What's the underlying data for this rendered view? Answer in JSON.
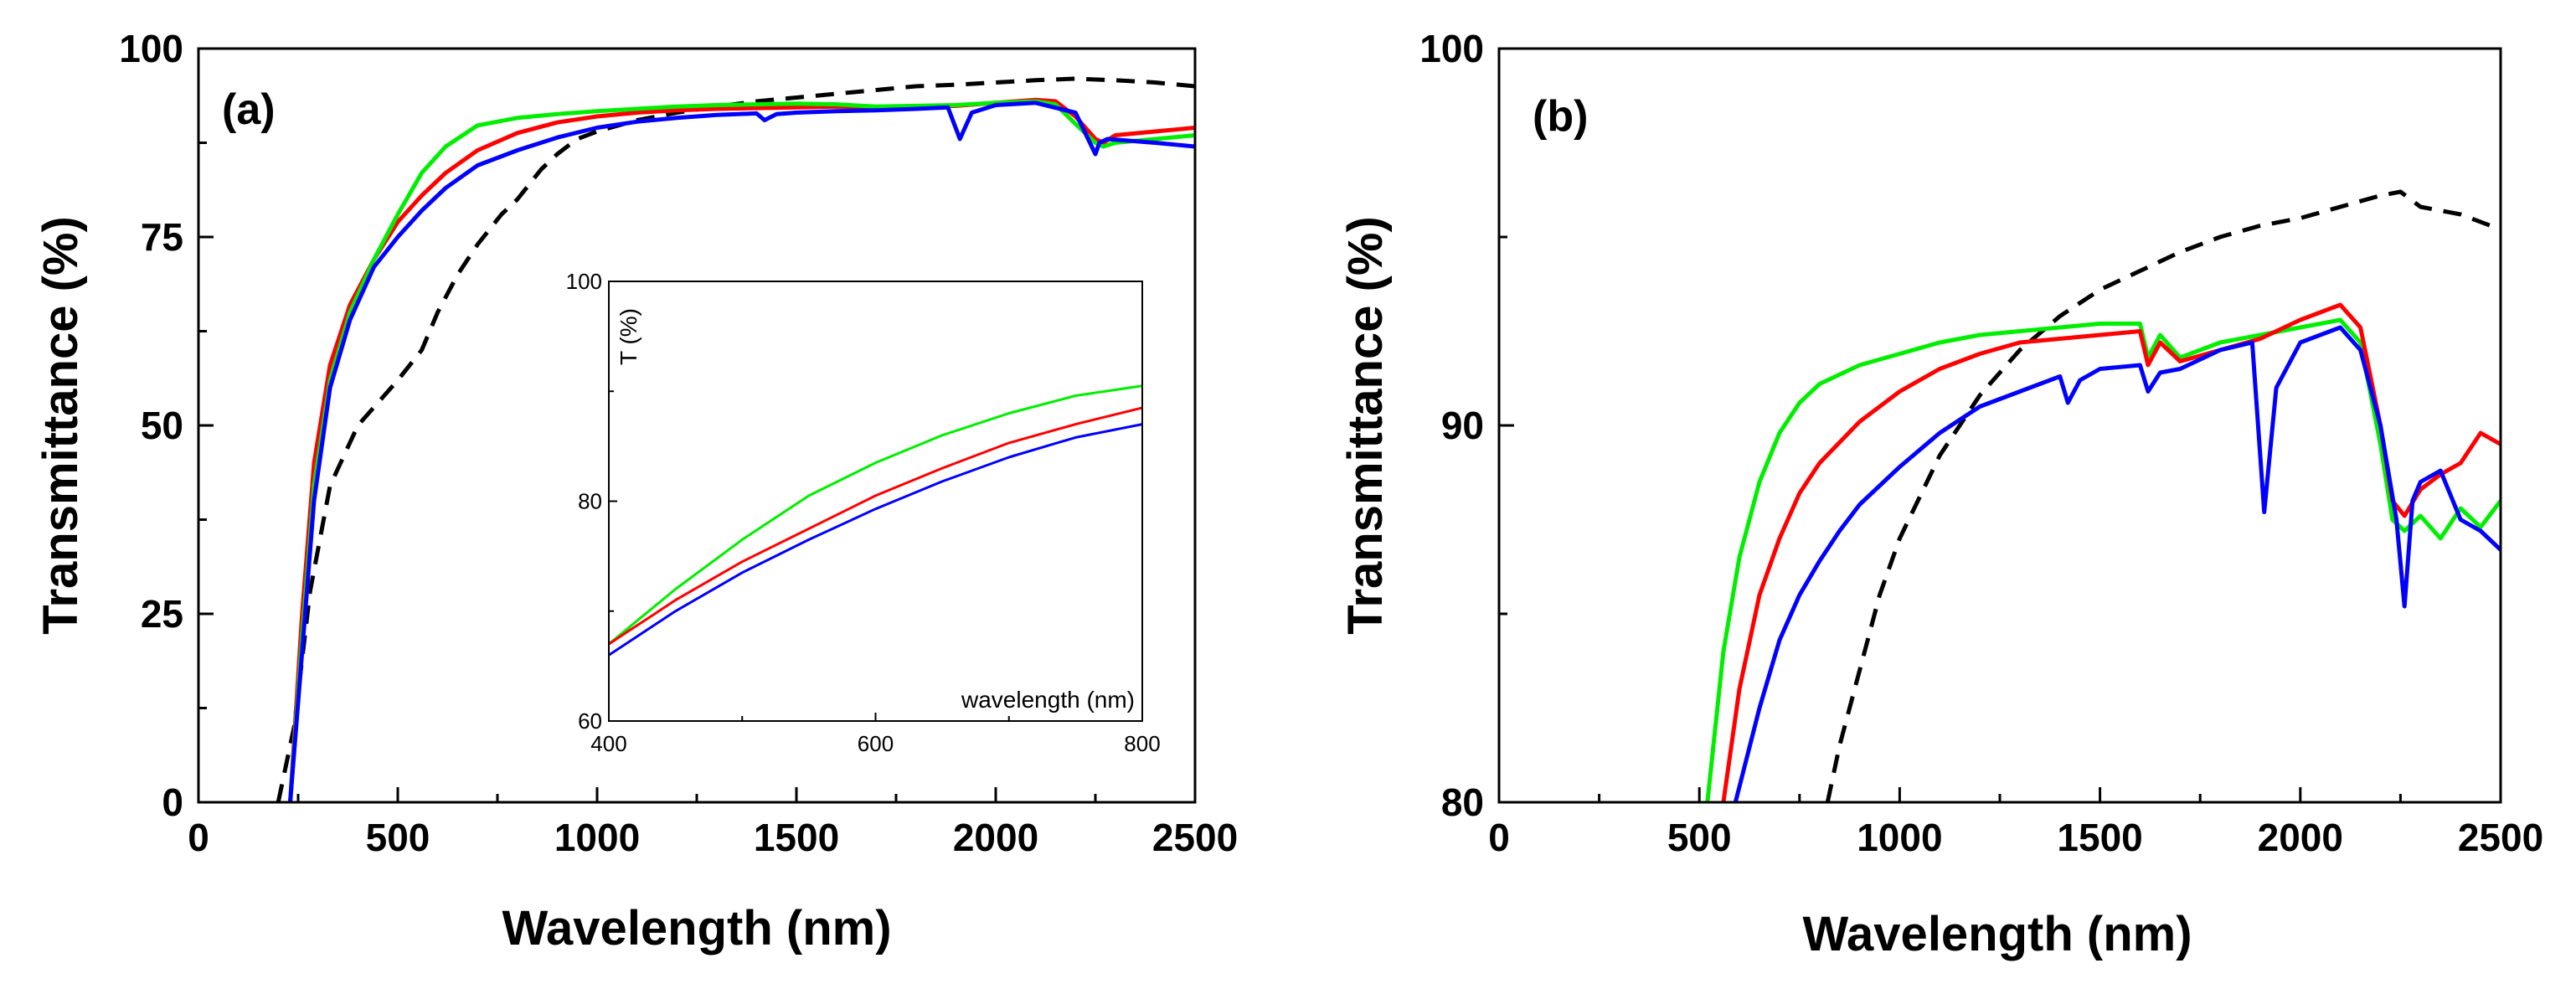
{
  "chart_data": [
    {
      "id": "a",
      "type": "line",
      "panel_label": "(a)",
      "xlabel": "Wavelength (nm)",
      "ylabel": "Transmittance (%)",
      "xlim": [
        0,
        2500
      ],
      "ylim": [
        0,
        100
      ],
      "xticks": [
        0,
        500,
        1000,
        1500,
        2000,
        2500
      ],
      "yticks": [
        0,
        25,
        50,
        75,
        100
      ],
      "series": [
        {
          "name": "black",
          "color": "#000000",
          "dashed": true,
          "x": [
            200,
            240,
            280,
            330,
            400,
            450,
            500,
            560,
            600,
            650,
            700,
            760,
            800,
            860,
            900,
            950,
            1000,
            1100,
            1200,
            1300,
            1400,
            1500,
            1600,
            1700,
            1800,
            1900,
            2000,
            2100,
            2200,
            2300,
            2400,
            2500
          ],
          "y": [
            0,
            10,
            28,
            42,
            50,
            53,
            56,
            60,
            65,
            70,
            74,
            78,
            80,
            84,
            86,
            88,
            89,
            90.5,
            91.5,
            92.3,
            93,
            93.5,
            94,
            94.5,
            95,
            95.2,
            95.5,
            95.8,
            96,
            95.8,
            95.5,
            95
          ]
        },
        {
          "name": "red",
          "color": "#ff0000",
          "dashed": false,
          "x": [
            230,
            260,
            290,
            330,
            380,
            440,
            500,
            560,
            620,
            700,
            800,
            900,
            1000,
            1100,
            1200,
            1300,
            1400,
            1500,
            1600,
            1700,
            1800,
            1900,
            2000,
            2100,
            2150,
            2200,
            2250,
            2270,
            2300,
            2400,
            2500
          ],
          "y": [
            0,
            25,
            45,
            58,
            66,
            72,
            77,
            80.5,
            83.5,
            86.5,
            88.8,
            90.2,
            91,
            91.5,
            91.8,
            92,
            92.1,
            92.2,
            92.3,
            92.2,
            92.3,
            92.4,
            92.8,
            93.2,
            93,
            91,
            88,
            87.5,
            88.5,
            89,
            89.5
          ]
        },
        {
          "name": "green",
          "color": "#00ee00",
          "dashed": false,
          "x": [
            230,
            260,
            290,
            330,
            380,
            440,
            500,
            560,
            620,
            700,
            800,
            900,
            1000,
            1100,
            1200,
            1300,
            1400,
            1500,
            1600,
            1700,
            1800,
            1900,
            2000,
            2100,
            2150,
            2200,
            2250,
            2270,
            2300,
            2400,
            2500
          ],
          "y": [
            0,
            22,
            42,
            56,
            65,
            72,
            78,
            83.5,
            87,
            89.8,
            90.8,
            91.3,
            91.7,
            92,
            92.3,
            92.5,
            92.6,
            92.7,
            92.6,
            92.3,
            92.4,
            92.5,
            92.8,
            93,
            92.6,
            90,
            87.5,
            87,
            87.5,
            88,
            88.5
          ]
        },
        {
          "name": "blue",
          "color": "#0000ff",
          "dashed": false,
          "x": [
            230,
            260,
            290,
            330,
            380,
            440,
            500,
            560,
            620,
            700,
            800,
            900,
            1000,
            1100,
            1200,
            1300,
            1400,
            1420,
            1450,
            1500,
            1600,
            1700,
            1800,
            1880,
            1910,
            1940,
            2000,
            2100,
            2200,
            2250,
            2260,
            2280,
            2400,
            2500
          ],
          "y": [
            0,
            20,
            40,
            55,
            64,
            71,
            75,
            78.5,
            81.5,
            84.5,
            86.5,
            88.2,
            89.5,
            90.3,
            90.8,
            91.2,
            91.4,
            90.5,
            91.3,
            91.5,
            91.7,
            91.8,
            92,
            92.2,
            88,
            91.5,
            92.5,
            92.8,
            91.5,
            86,
            87.5,
            88,
            87.5,
            87
          ]
        }
      ],
      "inset": {
        "type": "line",
        "xlabel": "wavelength (nm)",
        "ylabel": "T (%)",
        "xlim": [
          400,
          800
        ],
        "ylim": [
          60,
          100
        ],
        "xticks": [
          400,
          600,
          800
        ],
        "yticks": [
          60,
          80,
          100
        ],
        "series": [
          {
            "name": "green",
            "color": "#00ee00",
            "x": [
              400,
              450,
              500,
              550,
              600,
              650,
              700,
              750,
              800
            ],
            "y": [
              67,
              72,
              76.5,
              80.5,
              83.5,
              86,
              88,
              89.6,
              90.5
            ]
          },
          {
            "name": "red",
            "color": "#ff0000",
            "x": [
              400,
              450,
              500,
              550,
              600,
              650,
              700,
              750,
              800
            ],
            "y": [
              67,
              71,
              74.5,
              77.5,
              80.5,
              83,
              85.3,
              87,
              88.5
            ]
          },
          {
            "name": "blue",
            "color": "#0000ff",
            "x": [
              400,
              450,
              500,
              550,
              600,
              650,
              700,
              750,
              800
            ],
            "y": [
              66,
              70,
              73.5,
              76.5,
              79.3,
              81.8,
              84,
              85.8,
              87
            ]
          }
        ]
      }
    },
    {
      "id": "b",
      "type": "line",
      "panel_label": "(b)",
      "xlabel": "Wavelength (nm)",
      "ylabel": "Transmittance (%)",
      "xlim": [
        0,
        2500
      ],
      "ylim": [
        80,
        100
      ],
      "xticks": [
        0,
        500,
        1000,
        1500,
        2000,
        2500
      ],
      "yticks": [
        80,
        90,
        100
      ],
      "series": [
        {
          "name": "black",
          "color": "#000000",
          "dashed": true,
          "x": [
            820,
            850,
            900,
            950,
            1000,
            1100,
            1200,
            1300,
            1400,
            1500,
            1600,
            1700,
            1800,
            1900,
            2000,
            2100,
            2200,
            2250,
            2300,
            2400,
            2500
          ],
          "y": [
            80,
            81.5,
            83.5,
            85.5,
            87,
            89.2,
            90.8,
            92,
            92.9,
            93.6,
            94.1,
            94.6,
            95,
            95.3,
            95.5,
            95.8,
            96.1,
            96.2,
            95.8,
            95.6,
            95.2
          ]
        },
        {
          "name": "green",
          "color": "#00ee00",
          "dashed": false,
          "x": [
            520,
            560,
            600,
            650,
            700,
            750,
            800,
            900,
            1000,
            1100,
            1200,
            1300,
            1400,
            1500,
            1600,
            1620,
            1650,
            1700,
            1800,
            1900,
            2000,
            2100,
            2150,
            2200,
            2230,
            2260,
            2300,
            2350,
            2400,
            2450,
            2500
          ],
          "y": [
            80,
            84,
            86.5,
            88.5,
            89.8,
            90.6,
            91.1,
            91.6,
            91.9,
            92.2,
            92.4,
            92.5,
            92.6,
            92.7,
            92.7,
            91.8,
            92.4,
            91.8,
            92.2,
            92.4,
            92.6,
            92.8,
            92.2,
            89.5,
            87.5,
            87.2,
            87.6,
            87,
            87.8,
            87.3,
            88
          ]
        },
        {
          "name": "red",
          "color": "#ff0000",
          "dashed": false,
          "x": [
            560,
            600,
            650,
            700,
            750,
            800,
            900,
            1000,
            1100,
            1200,
            1300,
            1400,
            1500,
            1600,
            1620,
            1650,
            1700,
            1800,
            1900,
            2000,
            2100,
            2150,
            2200,
            2230,
            2260,
            2300,
            2350,
            2400,
            2450,
            2500
          ],
          "y": [
            80,
            83,
            85.5,
            87,
            88.2,
            89,
            90.1,
            90.9,
            91.5,
            91.9,
            92.2,
            92.3,
            92.4,
            92.5,
            91.6,
            92.2,
            91.7,
            92,
            92.3,
            92.8,
            93.2,
            92.6,
            90,
            88,
            87.6,
            88.3,
            88.7,
            89,
            89.8,
            89.5
          ]
        },
        {
          "name": "blue",
          "color": "#0000ff",
          "dashed": false,
          "x": [
            590,
            650,
            700,
            750,
            800,
            850,
            900,
            1000,
            1100,
            1200,
            1300,
            1400,
            1420,
            1450,
            1500,
            1600,
            1620,
            1650,
            1700,
            1800,
            1880,
            1910,
            1940,
            2000,
            2100,
            2150,
            2200,
            2240,
            2260,
            2280,
            2300,
            2350,
            2400,
            2450,
            2500
          ],
          "y": [
            80,
            82.5,
            84.3,
            85.5,
            86.4,
            87.2,
            87.9,
            88.9,
            89.8,
            90.5,
            90.9,
            91.3,
            90.6,
            91.2,
            91.5,
            91.6,
            90.9,
            91.4,
            91.5,
            92,
            92.2,
            87.7,
            91,
            92.2,
            92.6,
            92,
            90,
            87.5,
            85.2,
            88,
            88.5,
            88.8,
            87.5,
            87.2,
            86.7
          ]
        }
      ]
    }
  ]
}
